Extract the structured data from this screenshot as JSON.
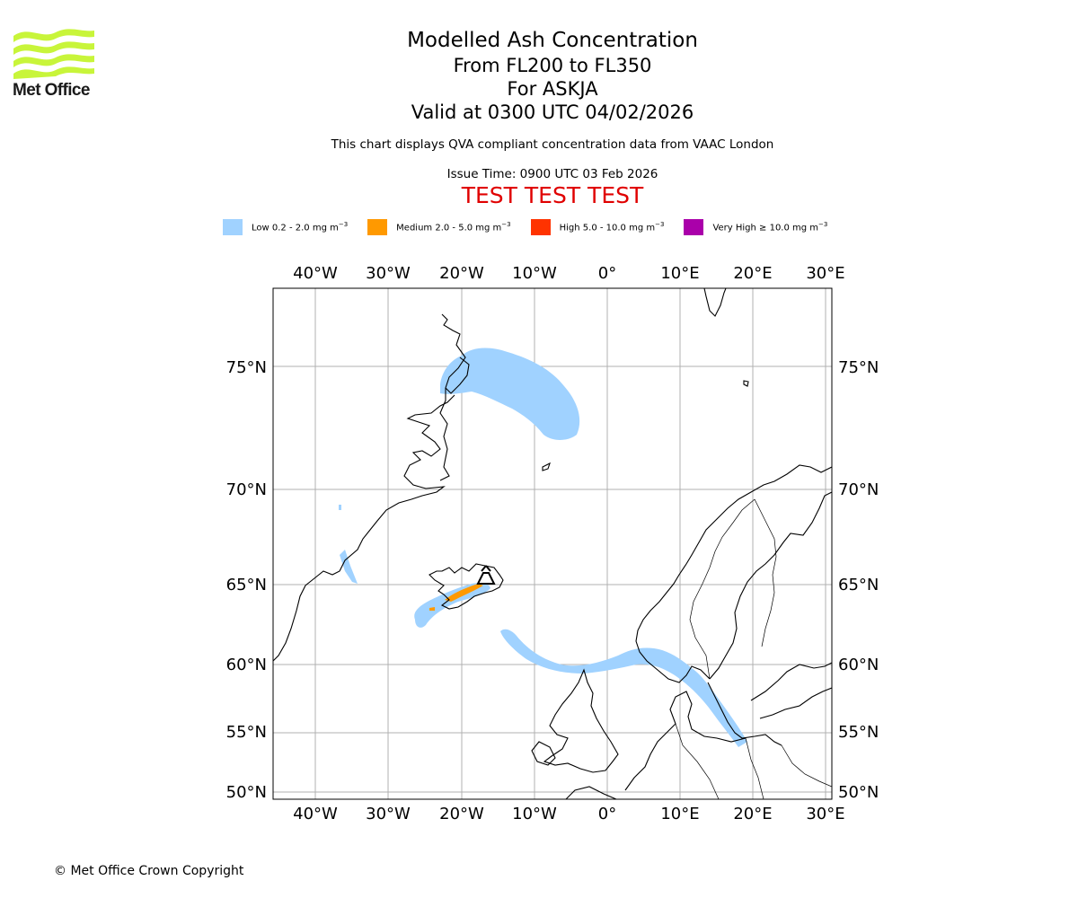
{
  "logo": {
    "text": "Met Office",
    "color": "#c8f53a"
  },
  "title": {
    "line1": "Modelled Ash Concentration",
    "line2": "From FL200 to FL350",
    "line3": "For ASKJA",
    "line4": "Valid at 0300 UTC 04/02/2026"
  },
  "subtitle": "This chart displays QVA compliant concentration data from VAAC London",
  "issue_time": "Issue Time: 0900 UTC 03 Feb 2026",
  "test_banner": "TEST TEST TEST",
  "legend": [
    {
      "label": "Low 0.2 - 2.0 mg m",
      "unit_exp": "−3",
      "color": "#a0d2ff"
    },
    {
      "label": "Medium 2.0 - 5.0 mg m",
      "unit_exp": "−3",
      "color": "#ff9900"
    },
    {
      "label": "High 5.0 - 10.0 mg m",
      "unit_exp": "−3",
      "color": "#ff3300"
    },
    {
      "label": "Very High  ≥  10.0 mg m",
      "unit_exp": "−3",
      "color": "#aa00aa"
    }
  ],
  "map": {
    "lon_ticks": [
      "40°W",
      "30°W",
      "20°W",
      "10°W",
      "0°",
      "10°E",
      "20°E",
      "30°E"
    ],
    "lat_ticks": [
      "75°N",
      "70°N",
      "65°N",
      "60°N",
      "55°N",
      "50°N"
    ],
    "volcano": "ASKJA",
    "ash_low_color": "#a0d2ff",
    "ash_medium_color": "#ff9900"
  },
  "copyright": "© Met Office Crown Copyright"
}
